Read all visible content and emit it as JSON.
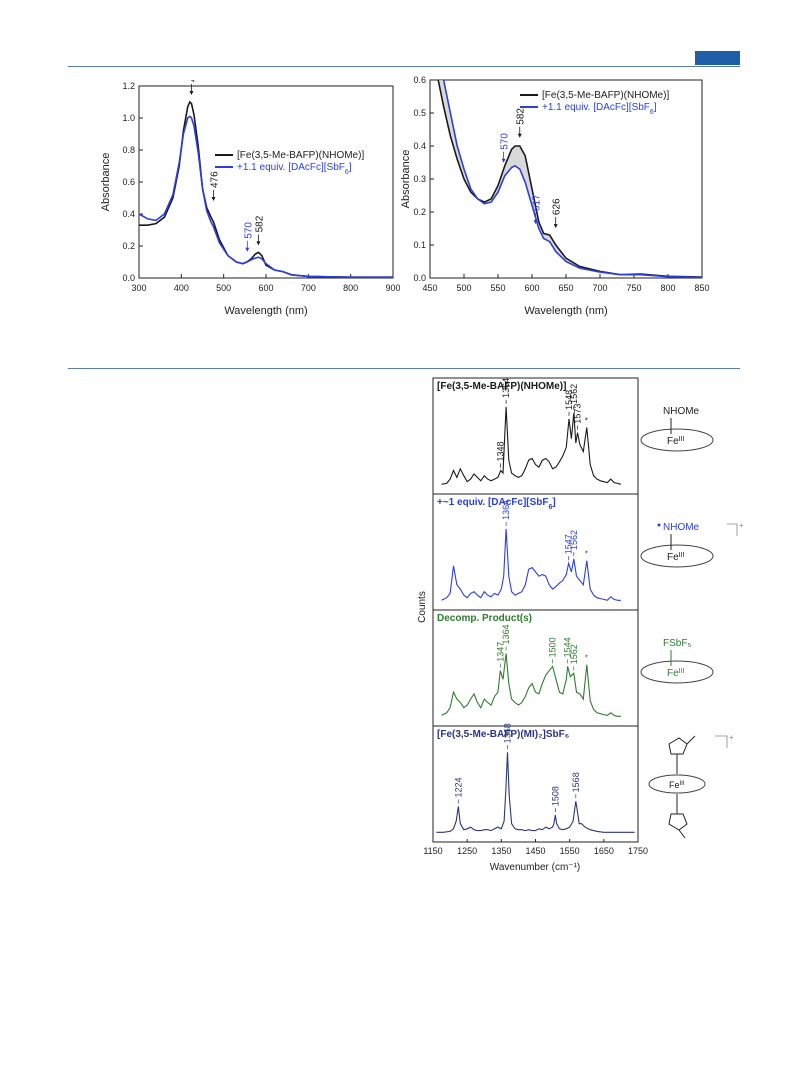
{
  "page": {
    "header_rule_color": "#5b7fa6",
    "tab_color": "#1f5fa8"
  },
  "chart_data": [
    {
      "type": "line",
      "xlabel": "Wavelength (nm)",
      "ylabel": "Absorbance",
      "xlim": [
        300,
        900
      ],
      "ylim": [
        0,
        1.2
      ],
      "x_ticks": [
        "300",
        "400",
        "500",
        "600",
        "700",
        "800",
        "900"
      ],
      "y_ticks": [
        "0.0",
        "0.2",
        "0.4",
        "0.6",
        "0.8",
        "1.0",
        "1.2"
      ],
      "legend": {
        "position": "middle-right",
        "entries": [
          "[Fe(3,5-Me-BAFP)(NHOMe)]",
          "+1.1 equiv. [DAcFc][SbF6]"
        ]
      },
      "series": [
        {
          "name": "[Fe(3,5-Me-BAFP)(NHOMe)]",
          "color": "#1a1a1a",
          "x": [
            300,
            320,
            340,
            360,
            380,
            395,
            405,
            415,
            420,
            424,
            430,
            440,
            450,
            460,
            470,
            476,
            490,
            510,
            530,
            545,
            555,
            565,
            575,
            582,
            590,
            600,
            620,
            640,
            660,
            700,
            800,
            900
          ],
          "y": [
            0.33,
            0.33,
            0.34,
            0.38,
            0.5,
            0.7,
            0.92,
            1.07,
            1.1,
            1.09,
            1.02,
            0.82,
            0.56,
            0.44,
            0.38,
            0.35,
            0.24,
            0.14,
            0.1,
            0.09,
            0.1,
            0.12,
            0.15,
            0.16,
            0.14,
            0.08,
            0.05,
            0.04,
            0.02,
            0.01,
            0.005,
            0.005
          ]
        },
        {
          "name": "+1.1 equiv. [DAcFc][SbF6]",
          "color": "#2b3fe0",
          "x": [
            300,
            320,
            340,
            360,
            380,
            395,
            405,
            415,
            420,
            424,
            430,
            440,
            450,
            460,
            470,
            476,
            490,
            510,
            530,
            545,
            555,
            570,
            582,
            590,
            600,
            620,
            640,
            660,
            700,
            800,
            900
          ],
          "y": [
            0.4,
            0.37,
            0.36,
            0.4,
            0.52,
            0.72,
            0.9,
            1.0,
            1.01,
            1.0,
            0.95,
            0.78,
            0.56,
            0.42,
            0.35,
            0.32,
            0.22,
            0.14,
            0.1,
            0.09,
            0.1,
            0.12,
            0.13,
            0.12,
            0.09,
            0.05,
            0.04,
            0.02,
            0.01,
            0.005,
            0.005
          ]
        }
      ],
      "annotations": [
        {
          "text": "424",
          "x": 424,
          "y": 1.1,
          "color": "#1a1a1a"
        },
        {
          "text": "476",
          "x": 476,
          "y": 0.35,
          "color": "#1a1a1a"
        },
        {
          "text": "570",
          "x": 570,
          "y": 0.12,
          "color": "#2b3fe0"
        },
        {
          "text": "582",
          "x": 582,
          "y": 0.16,
          "color": "#1a1a1a"
        }
      ]
    },
    {
      "type": "line",
      "xlabel": "Wavelength (nm)",
      "ylabel": "Absorbance",
      "xlim": [
        450,
        850
      ],
      "ylim": [
        0,
        0.6
      ],
      "x_ticks": [
        "450",
        "500",
        "550",
        "600",
        "650",
        "700",
        "750",
        "800",
        "850"
      ],
      "y_ticks": [
        "0.0",
        "0.1",
        "0.2",
        "0.3",
        "0.4",
        "0.5",
        "0.6"
      ],
      "legend": {
        "position": "top-right",
        "entries": [
          "[Fe(3,5-Me-BAFP)(NHOMe)]",
          "+1.1 equiv. [DAcFc][SbF6]"
        ]
      },
      "series": [
        {
          "name": "[Fe(3,5-Me-BAFP)(NHOMe)]",
          "color": "#1a1a1a",
          "x": [
            462,
            470,
            480,
            490,
            500,
            510,
            520,
            530,
            540,
            550,
            560,
            570,
            575,
            582,
            590,
            600,
            610,
            617,
            626,
            635,
            650,
            670,
            700,
            730,
            760,
            800,
            850
          ],
          "y": [
            0.6,
            0.52,
            0.43,
            0.36,
            0.3,
            0.26,
            0.24,
            0.23,
            0.24,
            0.28,
            0.34,
            0.39,
            0.4,
            0.4,
            0.37,
            0.27,
            0.17,
            0.135,
            0.13,
            0.1,
            0.06,
            0.035,
            0.02,
            0.01,
            0.012,
            0.005,
            0.003
          ]
        },
        {
          "name": "+1.1 equiv. [DAcFc][SbF6]",
          "color": "#2b3fe0",
          "x": [
            470,
            480,
            490,
            500,
            510,
            520,
            530,
            540,
            550,
            560,
            570,
            575,
            582,
            590,
            600,
            610,
            617,
            626,
            635,
            650,
            670,
            700,
            730,
            760,
            800,
            850
          ],
          "y": [
            0.6,
            0.5,
            0.4,
            0.33,
            0.27,
            0.24,
            0.225,
            0.23,
            0.26,
            0.31,
            0.335,
            0.34,
            0.33,
            0.29,
            0.22,
            0.15,
            0.12,
            0.11,
            0.08,
            0.05,
            0.03,
            0.018,
            0.01,
            0.01,
            0.004,
            0.002
          ]
        }
      ],
      "annotations": [
        {
          "text": "570",
          "x": 570,
          "y": 0.34,
          "color": "#2b3fe0"
        },
        {
          "text": "582",
          "x": 582,
          "y": 0.41,
          "color": "#1a1a1a"
        },
        {
          "text": "617",
          "x": 617,
          "y": 0.13,
          "color": "#2b3fe0"
        },
        {
          "text": "626",
          "x": 626,
          "y": 0.13,
          "color": "#1a1a1a"
        }
      ]
    },
    {
      "type": "line",
      "xlabel": "Wavenumber (cm⁻¹)",
      "ylabel": "Counts",
      "xlim": [
        1150,
        1750
      ],
      "x_ticks": [
        "1150",
        "1250",
        "1350",
        "1450",
        "1550",
        "1650",
        "1750"
      ],
      "panels": [
        {
          "title": "[Fe(3,5-Me-BAFP)(NHOMe)]",
          "color": "#1a1a1a",
          "peaks": [
            "1348",
            "1364",
            "1548",
            "1562",
            "1573"
          ],
          "star": "*",
          "structure_ligand": "NHOMe",
          "structure_metal": "Fe",
          "structure_metal_sup": "III",
          "x": [
            1175,
            1190,
            1200,
            1210,
            1220,
            1230,
            1240,
            1250,
            1260,
            1270,
            1280,
            1290,
            1300,
            1310,
            1320,
            1330,
            1340,
            1348,
            1355,
            1364,
            1372,
            1380,
            1390,
            1400,
            1410,
            1420,
            1430,
            1440,
            1450,
            1460,
            1470,
            1480,
            1490,
            1500,
            1510,
            1520,
            1530,
            1540,
            1548,
            1555,
            1562,
            1568,
            1573,
            1580,
            1590,
            1600,
            1610,
            1620,
            1630,
            1640,
            1650,
            1660,
            1670,
            1680,
            1690,
            1700
          ],
          "y": [
            0.02,
            0.03,
            0.08,
            0.18,
            0.1,
            0.2,
            0.12,
            0.05,
            0.08,
            0.14,
            0.1,
            0.06,
            0.12,
            0.08,
            0.06,
            0.08,
            0.1,
            0.18,
            0.15,
            0.92,
            0.3,
            0.15,
            0.12,
            0.1,
            0.12,
            0.2,
            0.3,
            0.32,
            0.25,
            0.22,
            0.3,
            0.32,
            0.28,
            0.2,
            0.22,
            0.28,
            0.35,
            0.45,
            0.78,
            0.55,
            0.85,
            0.5,
            0.62,
            0.48,
            0.4,
            0.68,
            0.25,
            0.12,
            0.08,
            0.06,
            0.05,
            0.04,
            0.08,
            0.04,
            0.03,
            0.02
          ]
        },
        {
          "title": "+~1 equiv. [DAcFc][SbF6]",
          "color": "#2b3fe0",
          "peaks": [
            "1364",
            "1547",
            "1562"
          ],
          "star": "*",
          "structure_ligand": "NHOMe",
          "structure_metal": "Fe",
          "structure_metal_sup": "III",
          "structure_charge": "+",
          "x": [
            1175,
            1190,
            1200,
            1210,
            1220,
            1230,
            1240,
            1250,
            1260,
            1270,
            1280,
            1290,
            1300,
            1310,
            1320,
            1330,
            1340,
            1350,
            1357,
            1364,
            1372,
            1380,
            1390,
            1400,
            1410,
            1420,
            1430,
            1440,
            1450,
            1460,
            1470,
            1480,
            1490,
            1500,
            1510,
            1520,
            1530,
            1540,
            1547,
            1555,
            1562,
            1570,
            1580,
            1590,
            1600,
            1610,
            1620,
            1630,
            1640,
            1650,
            1660,
            1670,
            1680,
            1690,
            1700
          ],
          "y": [
            0.02,
            0.05,
            0.1,
            0.42,
            0.2,
            0.15,
            0.08,
            0.05,
            0.1,
            0.12,
            0.08,
            0.05,
            0.12,
            0.08,
            0.06,
            0.1,
            0.08,
            0.15,
            0.3,
            0.85,
            0.3,
            0.12,
            0.08,
            0.1,
            0.12,
            0.2,
            0.38,
            0.4,
            0.35,
            0.3,
            0.32,
            0.3,
            0.2,
            0.15,
            0.18,
            0.22,
            0.25,
            0.32,
            0.45,
            0.35,
            0.5,
            0.3,
            0.25,
            0.2,
            0.48,
            0.15,
            0.08,
            0.05,
            0.04,
            0.03,
            0.02,
            0.06,
            0.03,
            0.02,
            0.02
          ]
        },
        {
          "title": "Decomp. Product(s)",
          "color": "#2e7d2e",
          "peaks": [
            "1347",
            "1364",
            "1500",
            "1544",
            "1562"
          ],
          "star": "*",
          "structure_ligand": "FSbF₅",
          "structure_metal": "Fe",
          "structure_metal_sup": "III",
          "x": [
            1175,
            1190,
            1200,
            1210,
            1220,
            1230,
            1240,
            1250,
            1260,
            1270,
            1280,
            1290,
            1300,
            1310,
            1320,
            1330,
            1340,
            1347,
            1355,
            1364,
            1372,
            1380,
            1390,
            1400,
            1410,
            1420,
            1430,
            1440,
            1450,
            1460,
            1470,
            1480,
            1490,
            1500,
            1510,
            1520,
            1530,
            1540,
            1544,
            1552,
            1562,
            1570,
            1580,
            1590,
            1600,
            1610,
            1620,
            1630,
            1640,
            1650,
            1660,
            1670,
            1680,
            1690,
            1700
          ],
          "y": [
            0.03,
            0.06,
            0.12,
            0.3,
            0.22,
            0.18,
            0.12,
            0.15,
            0.22,
            0.28,
            0.18,
            0.12,
            0.22,
            0.18,
            0.15,
            0.25,
            0.3,
            0.55,
            0.45,
            0.75,
            0.4,
            0.22,
            0.18,
            0.15,
            0.18,
            0.25,
            0.35,
            0.4,
            0.3,
            0.28,
            0.4,
            0.5,
            0.55,
            0.6,
            0.45,
            0.3,
            0.28,
            0.45,
            0.6,
            0.48,
            0.52,
            0.3,
            0.28,
            0.22,
            0.62,
            0.2,
            0.1,
            0.06,
            0.05,
            0.04,
            0.03,
            0.06,
            0.03,
            0.02,
            0.02
          ]
        },
        {
          "title": "[Fe(3,5-Me-BAFP)(MI)₂]SbF₆",
          "color": "#2b3580",
          "peaks": [
            "1224",
            "1368",
            "1508",
            "1568"
          ],
          "structure_metal": "Fe",
          "structure_metal_sup": "III",
          "structure_charge": "+",
          "x": [
            1160,
            1180,
            1200,
            1210,
            1218,
            1224,
            1230,
            1240,
            1250,
            1260,
            1270,
            1280,
            1290,
            1300,
            1310,
            1320,
            1330,
            1340,
            1350,
            1358,
            1363,
            1368,
            1373,
            1380,
            1390,
            1400,
            1410,
            1420,
            1430,
            1440,
            1450,
            1460,
            1470,
            1480,
            1490,
            1500,
            1504,
            1508,
            1512,
            1520,
            1530,
            1540,
            1550,
            1560,
            1565,
            1568,
            1572,
            1578,
            1585,
            1595,
            1610,
            1630,
            1650,
            1680,
            1710,
            1740
          ],
          "y": [
            0.02,
            0.02,
            0.03,
            0.06,
            0.15,
            0.32,
            0.12,
            0.05,
            0.06,
            0.08,
            0.05,
            0.04,
            0.04,
            0.05,
            0.05,
            0.04,
            0.06,
            0.08,
            0.06,
            0.15,
            0.5,
            0.95,
            0.45,
            0.12,
            0.06,
            0.05,
            0.05,
            0.04,
            0.05,
            0.04,
            0.04,
            0.06,
            0.05,
            0.08,
            0.06,
            0.08,
            0.12,
            0.22,
            0.12,
            0.06,
            0.05,
            0.06,
            0.08,
            0.15,
            0.3,
            0.38,
            0.28,
            0.12,
            0.12,
            0.08,
            0.05,
            0.03,
            0.02,
            0.02,
            0.02,
            0.02
          ]
        }
      ]
    }
  ]
}
